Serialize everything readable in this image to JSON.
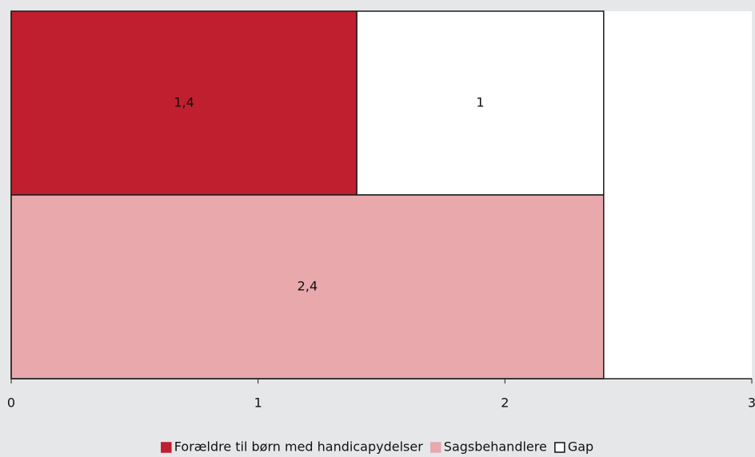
{
  "chart_data": {
    "type": "bar",
    "orientation": "horizontal",
    "stacked": true,
    "categories": [
      null,
      null
    ],
    "series": [
      {
        "name": "Forældre til børn med handicapydelser",
        "color": "#c01f2f",
        "values": [
          1.4,
          null
        ],
        "value_labels": [
          "1,4",
          null
        ]
      },
      {
        "name": "Sagsbehandlere",
        "color": "#e8a8ac",
        "values": [
          null,
          2.4
        ],
        "value_labels": [
          null,
          "2,4"
        ]
      },
      {
        "name": "Gap",
        "color": "#ffffff",
        "values": [
          1,
          null
        ],
        "value_labels": [
          "1",
          null
        ]
      }
    ],
    "xlim": [
      0,
      3
    ],
    "xticks": [
      0,
      1,
      2,
      3
    ],
    "legend": "bottom"
  }
}
